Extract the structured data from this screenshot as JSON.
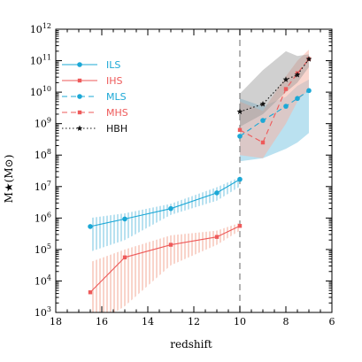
{
  "chart_data": {
    "type": "line",
    "xlabel": "redshift",
    "ylabel": "M★(M⊙)",
    "xlim": [
      18,
      6
    ],
    "ylim_log10": [
      3,
      12
    ],
    "y_scale": "log",
    "x_ticks": [
      18,
      16,
      14,
      12,
      10,
      8,
      6
    ],
    "y_tick_exponents": [
      3,
      4,
      5,
      6,
      7,
      8,
      9,
      10,
      11,
      12
    ],
    "vline_x": 10,
    "legend_position": "top-left",
    "colors": {
      "cyan": "#1ca8d6",
      "red": "#ee5a5a",
      "black": "#111111"
    },
    "series": [
      {
        "name": "ILS",
        "color": "#1ca8d6",
        "style": "solid",
        "marker": "circle",
        "x": [
          16.5,
          15,
          13,
          11,
          10
        ],
        "log10_y": [
          5.73,
          5.97,
          6.3,
          6.8,
          7.23
        ],
        "band_lo": [
          4.93,
          5.3,
          6.1,
          6.55,
          7.0
        ],
        "band_hi": [
          6.0,
          6.15,
          6.45,
          6.98,
          7.3
        ]
      },
      {
        "name": "IHS",
        "color": "#ee5a5a",
        "style": "solid",
        "marker": "square",
        "x": [
          16.5,
          15,
          13,
          11,
          10
        ],
        "log10_y": [
          3.64,
          4.75,
          5.15,
          5.4,
          5.75
        ],
        "band_lo": [
          2.5,
          3.2,
          4.5,
          5.15,
          5.6
        ],
        "band_hi": [
          4.6,
          5.0,
          5.45,
          5.6,
          5.85
        ]
      },
      {
        "name": "MLS",
        "color": "#1ca8d6",
        "style": "dashed",
        "marker": "circle",
        "x": [
          10,
          9,
          8,
          7.5,
          7
        ],
        "log10_y": [
          8.6,
          9.1,
          9.55,
          9.8,
          10.05
        ],
        "band_lo": [
          7.8,
          7.9,
          8.2,
          8.4,
          8.7
        ],
        "band_hi": [
          9.8,
          9.55,
          9.85,
          10.2,
          10.4
        ]
      },
      {
        "name": "MHS",
        "color": "#ee5a5a",
        "style": "dashed",
        "marker": "square",
        "x": [
          10,
          9,
          8,
          7.5,
          7
        ],
        "log10_y": [
          8.8,
          8.4,
          10.1,
          10.6,
          11.05
        ],
        "band_lo": [
          8.0,
          7.9,
          9.0,
          9.7,
          10.1
        ],
        "band_hi": [
          9.7,
          9.4,
          10.5,
          11.0,
          11.35
        ]
      },
      {
        "name": "HBH",
        "color": "#111111",
        "style": "dotted",
        "marker": "star",
        "x": [
          10,
          9,
          8,
          7.5,
          7
        ],
        "log10_y": [
          9.38,
          9.62,
          10.4,
          10.55,
          11.05
        ],
        "band_lo": [
          8.9,
          9.3,
          10.0,
          10.3,
          10.8
        ],
        "band_hi": [
          9.95,
          10.7,
          11.3,
          11.15,
          11.2
        ]
      }
    ]
  }
}
